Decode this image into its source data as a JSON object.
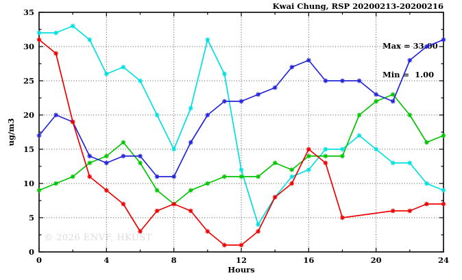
{
  "header": {
    "title": "Kwai Chung, RSP 20200213-20200216"
  },
  "annotation_box": {
    "lines": [
      "Max = 33.00",
      "Min =  1.00"
    ]
  },
  "watermark": "© 2026 ENVF, HKUST",
  "chart_data": {
    "type": "line",
    "title": "Kwai Chung, RSP 20200213-20200216",
    "xlabel": "Hours",
    "ylabel": "ug/m3",
    "xlim": [
      0,
      24
    ],
    "ylim": [
      0,
      35
    ],
    "x_major_ticks": [
      0,
      4,
      8,
      12,
      16,
      20,
      24
    ],
    "x_minor_step": 2,
    "y_major_ticks": [
      0,
      5,
      10,
      15,
      20,
      25,
      30,
      35
    ],
    "y_minor_step": 2.5,
    "grid": true,
    "grid_style": "dotted",
    "legend": "none",
    "annotations": {
      "max": 33.0,
      "min": 1.0
    },
    "x": [
      0,
      1,
      2,
      3,
      4,
      5,
      6,
      7,
      8,
      9,
      10,
      11,
      12,
      13,
      14,
      15,
      16,
      17,
      18,
      19,
      20,
      21,
      22,
      23,
      24
    ],
    "series": [
      {
        "name": "cyan",
        "color": "#00e0e0",
        "values": [
          32,
          32,
          33,
          31,
          26,
          27,
          25,
          20,
          15,
          21,
          31,
          26,
          12,
          4,
          8,
          11,
          12,
          15,
          15,
          17,
          15,
          13,
          13,
          10,
          9
        ]
      },
      {
        "name": "green",
        "color": "#00c400",
        "values": [
          9,
          10,
          11,
          13,
          14,
          16,
          13,
          9,
          7,
          9,
          10,
          11,
          11,
          11,
          13,
          12,
          14,
          14,
          14,
          20,
          22,
          23,
          20,
          16,
          17
        ]
      },
      {
        "name": "blue",
        "color": "#2424d8",
        "values": [
          17,
          20,
          19,
          14,
          13,
          14,
          14,
          11,
          11,
          16,
          20,
          22,
          22,
          23,
          24,
          27,
          28,
          25,
          25,
          25,
          23,
          22,
          28,
          30,
          31
        ]
      },
      {
        "name": "red",
        "color": "#ee0000",
        "values": [
          31,
          29,
          19,
          11,
          9,
          7,
          3,
          6,
          7,
          6,
          3,
          1,
          1,
          3,
          8,
          10,
          15,
          13,
          5,
          null,
          null,
          6,
          6,
          7,
          7
        ]
      }
    ]
  }
}
